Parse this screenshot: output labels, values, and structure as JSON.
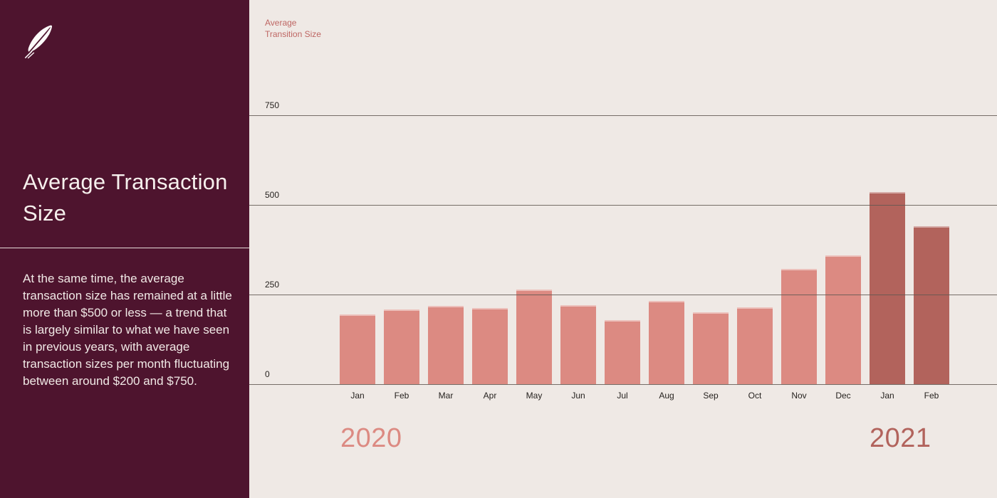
{
  "sidebar": {
    "logo_icon": "robinhood-feather-icon",
    "title": "Average Transaction Size",
    "body": "At the same time, the average transaction size has remained at a little more than $500 or less — a trend that is largely similar to what we have seen in previous years, with average transaction sizes per month fluctuating between around $200 and $750."
  },
  "chart_data": {
    "type": "bar",
    "title_lines": [
      "Average",
      "Transition Size"
    ],
    "ylabel": "Average Transition Size",
    "yticks": [
      750,
      500,
      250,
      0
    ],
    "ylim": [
      0,
      750
    ],
    "grid": true,
    "categories": [
      "Jan",
      "Feb",
      "Mar",
      "Apr",
      "May",
      "Jun",
      "Jul",
      "Aug",
      "Sep",
      "Oct",
      "Nov",
      "Dec",
      "Jan",
      "Feb"
    ],
    "series": [
      {
        "name": "2020",
        "color": "#DC8A82",
        "months": [
          "Jan",
          "Feb",
          "Mar",
          "Apr",
          "May",
          "Jun",
          "Jul",
          "Aug",
          "Sep",
          "Oct",
          "Nov",
          "Dec"
        ],
        "values": [
          195,
          208,
          218,
          212,
          264,
          220,
          178,
          232,
          200,
          214,
          321,
          359
        ]
      },
      {
        "name": "2021",
        "color": "#B2635C",
        "months": [
          "Jan",
          "Feb"
        ],
        "values": [
          536,
          440
        ]
      }
    ]
  },
  "colors": {
    "sidebar_bg": "#4E142E",
    "chart_bg": "#EFE9E5",
    "bar_2020": "#DC8A82",
    "bar_2021": "#B2635C",
    "gridline": "#5F5751",
    "tick_text": "#26221F",
    "chart_label_text": "#BE6663",
    "sidebar_text": "#F1E9E6"
  }
}
